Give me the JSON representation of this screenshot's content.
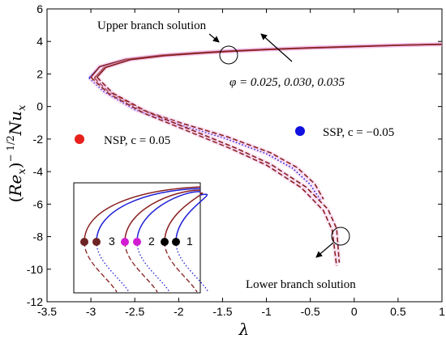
{
  "chart_data": {
    "type": "line",
    "xlabel": "λ",
    "ylabel": "(Re_x)^(-1/2) Nu_x",
    "ylabel_parts": {
      "open": "(",
      "re": "Re",
      "re_sub": "x",
      "close": ")",
      "exp": "− 1/2",
      "nu": "Nu",
      "nu_sub": "x"
    },
    "xlim": [
      -3.5,
      1
    ],
    "ylim": [
      -12,
      6
    ],
    "xticks": [
      -3.5,
      -3,
      -2.5,
      -2,
      -1.5,
      -1,
      -0.5,
      0,
      0.5,
      1
    ],
    "xtick_labels": [
      "-3.5",
      "-3",
      "-2.5",
      "-2",
      "-1.5",
      "-1",
      "-0.5",
      "0",
      "0.5",
      "1"
    ],
    "yticks": [
      -12,
      -10,
      -8,
      -6,
      -4,
      -2,
      0,
      2,
      4,
      6
    ],
    "ytick_labels": [
      "-12",
      "-10",
      "-8",
      "-6",
      "-4",
      "-2",
      "0",
      "2",
      "4",
      "6"
    ],
    "grid": false,
    "series": [
      {
        "group": "SSP",
        "branch": "upper",
        "color": "#1f1fd6",
        "style": "solid",
        "x": [
          -3.02,
          -2.9,
          -2.6,
          -2.2,
          -1.8,
          -1.5,
          -1.0,
          -0.5,
          0.0,
          0.5,
          1.0
        ],
        "y": [
          1.75,
          2.45,
          2.9,
          3.15,
          3.3,
          3.4,
          3.52,
          3.62,
          3.7,
          3.77,
          3.83
        ]
      },
      {
        "group": "SSP",
        "branch": "lower",
        "color": "#1f1fd6",
        "style": "dotted",
        "x": [
          -3.02,
          -2.85,
          -2.5,
          -2.0,
          -1.5,
          -1.0,
          -0.7,
          -0.5,
          -0.38
        ],
        "y": [
          1.75,
          0.9,
          -0.2,
          -1.1,
          -1.9,
          -2.9,
          -3.8,
          -4.8,
          -5.8
        ]
      },
      {
        "group": "SSP",
        "branch": "upper",
        "color": "#8a1f1f",
        "style": "solid",
        "x": [
          -2.96,
          -2.85,
          -2.55,
          -2.15,
          -1.75,
          -1.45,
          -1.0,
          -0.5,
          0.0,
          0.5,
          1.0
        ],
        "y": [
          1.75,
          2.4,
          2.88,
          3.13,
          3.28,
          3.38,
          3.5,
          3.6,
          3.68,
          3.76,
          3.82
        ]
      },
      {
        "group": "SSP",
        "branch": "lower",
        "color": "#8a1f1f",
        "style": "dashed",
        "x": [
          -2.96,
          -2.8,
          -2.45,
          -1.95,
          -1.45,
          -0.95,
          -0.65,
          -0.45,
          -0.35
        ],
        "y": [
          1.75,
          0.92,
          -0.15,
          -1.05,
          -1.85,
          -2.85,
          -3.75,
          -4.75,
          -5.7
        ]
      },
      {
        "group": "NSP",
        "branch": "upper",
        "color": "#8a1f1f",
        "style": "solid",
        "x": [
          -3.0,
          -2.9,
          -2.6,
          -2.2,
          -1.8,
          -1.5,
          -1.0,
          -0.5,
          0.0,
          0.5,
          1.0
        ],
        "y": [
          1.8,
          2.45,
          2.9,
          3.15,
          3.3,
          3.4,
          3.52,
          3.62,
          3.7,
          3.77,
          3.83
        ]
      },
      {
        "group": "NSP",
        "branch": "lower",
        "color": "#8a1f1f",
        "style": "dashed",
        "x": [
          -3.0,
          -2.8,
          -2.4,
          -1.9,
          -1.4,
          -1.0,
          -0.6,
          -0.35,
          -0.25,
          -0.2
        ],
        "y": [
          1.8,
          0.8,
          -0.4,
          -1.5,
          -2.6,
          -3.6,
          -5.0,
          -6.4,
          -7.6,
          -9.8
        ]
      },
      {
        "group": "NSP",
        "branch": "upper",
        "color": "#8a1f1f",
        "style": "solid",
        "x": [
          -2.93,
          -2.83,
          -2.55,
          -2.15,
          -1.75,
          -1.45,
          -1.0,
          -0.5,
          0.0,
          0.5,
          1.0
        ],
        "y": [
          1.8,
          2.4,
          2.88,
          3.13,
          3.28,
          3.38,
          3.5,
          3.6,
          3.68,
          3.76,
          3.82
        ]
      },
      {
        "group": "NSP",
        "branch": "lower",
        "color": "#8a1f1f",
        "style": "dashed",
        "x": [
          -2.93,
          -2.75,
          -2.35,
          -1.85,
          -1.35,
          -0.95,
          -0.55,
          -0.3,
          -0.2,
          -0.17
        ],
        "y": [
          1.8,
          0.82,
          -0.35,
          -1.45,
          -2.55,
          -3.55,
          -4.95,
          -6.3,
          -7.5,
          -9.6
        ]
      }
    ],
    "annotations": [
      {
        "text": "Upper branch solution"
      },
      {
        "text": "φ = 0.025, 0.030, 0.035"
      },
      {
        "text": "Lower branch solution"
      },
      {
        "text": "NSP, c = 0.05",
        "marker_color": "#e8201c"
      },
      {
        "text": "SSP, c = −0.05",
        "marker_color": "#1010e0"
      }
    ],
    "inset": {
      "labels": [
        "3",
        "2",
        "1"
      ],
      "curves": [
        {
          "color": "#8a1f1f",
          "style": "solid"
        },
        {
          "color": "#8a1f1f",
          "style": "dashed"
        },
        {
          "color": "#1f1fd6",
          "style": "solid"
        },
        {
          "color": "#1f1fd6",
          "style": "dotted"
        }
      ],
      "point_colors": [
        "#6e2424",
        "#6e2424",
        "#d21cd2",
        "#d21cd2",
        "#000000",
        "#000000"
      ]
    }
  }
}
